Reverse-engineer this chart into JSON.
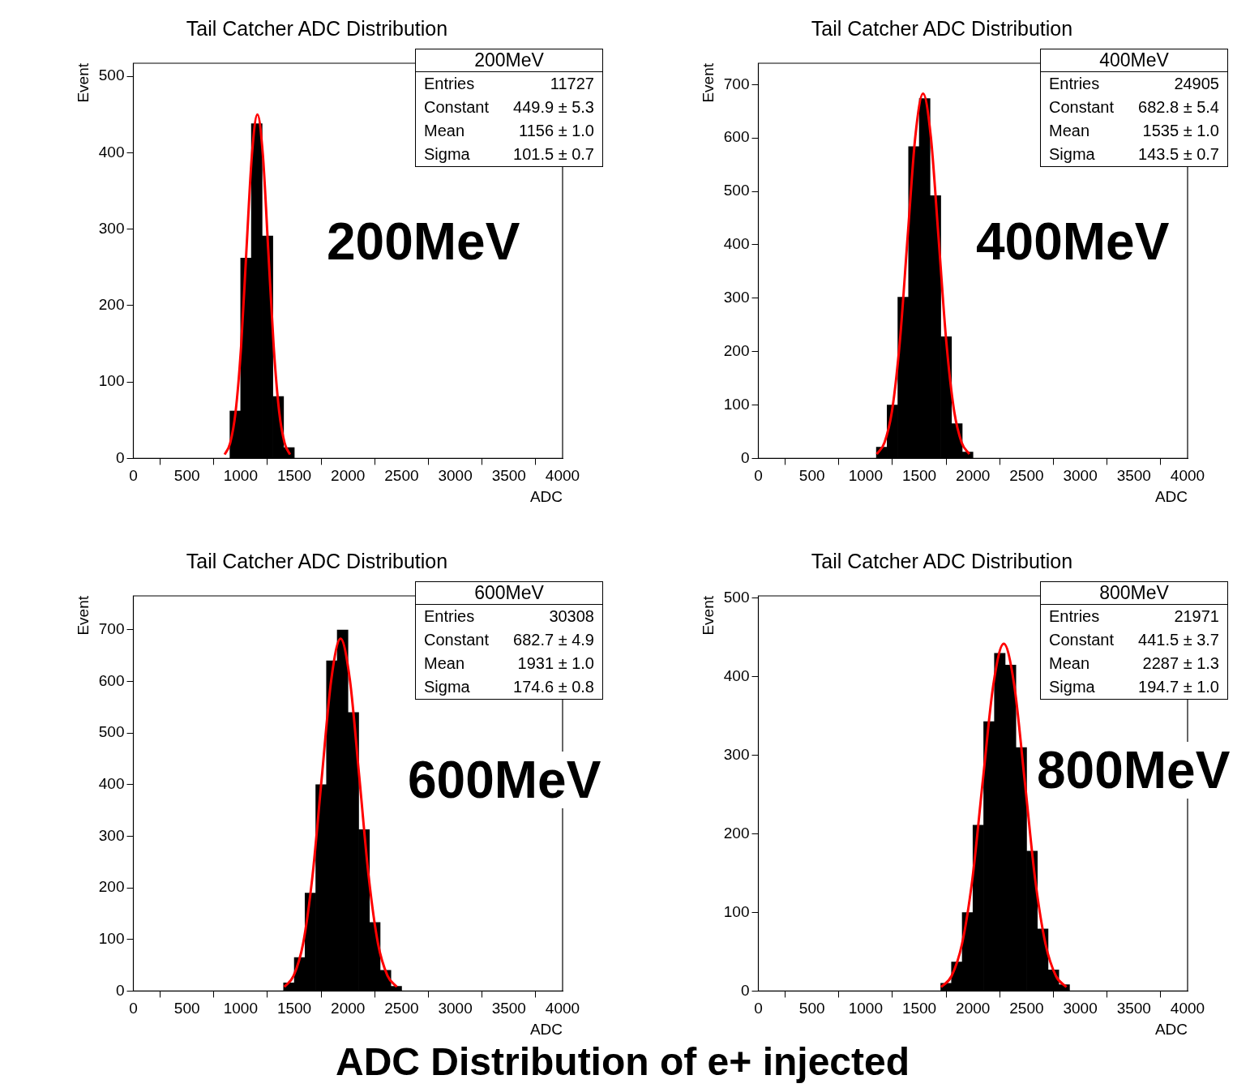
{
  "chart_data": [
    {
      "type": "histogram",
      "title": "Tail Catcher ADC Distribution",
      "xlabel": "ADC",
      "ylabel": "Event",
      "color": "#000000",
      "bins": [
        900,
        1000,
        1100,
        1200,
        1300,
        1400,
        1500
      ],
      "values": [
        62,
        262,
        438,
        291,
        81,
        14
      ],
      "series": [
        {
          "type": "line",
          "color": "#ff0000",
          "x": [
            851,
            902,
            953,
            1004,
            1054,
            1105,
            1156,
            1207,
            1257,
            1308,
            1359,
            1410,
            1460
          ],
          "values": [
            5,
            20,
            61,
            146,
            273,
            397,
            450,
            397,
            273,
            146,
            61,
            20,
            5
          ]
        }
      ],
      "xlim": [
        0,
        4000
      ],
      "xticks": [
        0,
        500,
        1000,
        1500,
        2000,
        2500,
        3000,
        3500,
        4000
      ],
      "ylim": [
        0,
        517
      ],
      "yticks": [
        0,
        100,
        200,
        300,
        400,
        500
      ],
      "annotations": [
        "200MeV",
        "Entries 11727",
        "Constant 449.9 ± 5.3",
        "Mean 1156 ± 1.0",
        "Sigma 101.5 ± 0.7",
        "200MeV"
      ]
    },
    {
      "type": "histogram",
      "title": "Tail Catcher ADC Distribution",
      "xlabel": "ADC",
      "ylabel": "Event",
      "color": "#000000",
      "bins": [
        1100,
        1200,
        1300,
        1400,
        1500,
        1600,
        1700,
        1800,
        1900,
        2000
      ],
      "values": [
        21,
        100,
        302,
        584,
        674,
        492,
        228,
        65,
        12
      ],
      "series": [
        {
          "type": "line",
          "color": "#ff0000",
          "x": [
            1104,
            1176,
            1248,
            1320,
            1391,
            1463,
            1535,
            1607,
            1679,
            1750,
            1822,
            1894,
            1966
          ],
          "values": [
            8,
            30,
            92,
            222,
            414,
            603,
            683,
            603,
            414,
            222,
            92,
            30,
            8
          ]
        }
      ],
      "xlim": [
        0,
        4000
      ],
      "xticks": [
        0,
        500,
        1000,
        1500,
        2000,
        2500,
        3000,
        3500,
        4000
      ],
      "ylim": [
        0,
        740
      ],
      "yticks": [
        0,
        100,
        200,
        300,
        400,
        500,
        600,
        700
      ],
      "annotations": [
        "400MeV",
        "Entries 24905",
        "Constant 682.8 ± 5.4",
        "Mean 1535 ± 1.0",
        "Sigma 143.5 ± 0.7",
        "400MeV"
      ]
    },
    {
      "type": "histogram",
      "title": "Tail Catcher ADC Distribution",
      "xlabel": "ADC",
      "ylabel": "Event",
      "color": "#000000",
      "bins": [
        1400,
        1500,
        1600,
        1700,
        1800,
        1900,
        2000,
        2100,
        2200,
        2300,
        2400,
        2500
      ],
      "values": [
        16,
        65,
        190,
        400,
        640,
        700,
        540,
        313,
        133,
        40,
        9
      ],
      "series": [
        {
          "type": "line",
          "color": "#ff0000",
          "x": [
            1407,
            1494,
            1582,
            1669,
            1756,
            1844,
            1931,
            2018,
            2106,
            2193,
            2280,
            2368,
            2455
          ],
          "values": [
            8,
            30,
            92,
            222,
            414,
            603,
            683,
            603,
            414,
            222,
            92,
            30,
            8
          ]
        }
      ],
      "xlim": [
        0,
        4000
      ],
      "xticks": [
        0,
        500,
        1000,
        1500,
        2000,
        2500,
        3000,
        3500,
        4000
      ],
      "ylim": [
        0,
        766
      ],
      "yticks": [
        0,
        100,
        200,
        300,
        400,
        500,
        600,
        700
      ],
      "annotations": [
        "600MeV",
        "Entries 30308",
        "Constant 682.7 ± 4.9",
        "Mean 1931 ± 1.0",
        "Sigma 174.6 ± 0.8",
        "600MeV"
      ]
    },
    {
      "type": "histogram",
      "title": "Tail Catcher ADC Distribution",
      "xlabel": "ADC",
      "ylabel": "Event",
      "color": "#000000",
      "bins": [
        1700,
        1800,
        1900,
        2000,
        2100,
        2200,
        2300,
        2400,
        2500,
        2600,
        2700,
        2800,
        2900
      ],
      "values": [
        10,
        37,
        100,
        211,
        343,
        430,
        415,
        310,
        178,
        79,
        27,
        8
      ],
      "series": [
        {
          "type": "line",
          "color": "#ff0000",
          "x": [
            1703,
            1800,
            1898,
            1995,
            2092,
            2190,
            2287,
            2384,
            2482,
            2579,
            2676,
            2774,
            2871
          ],
          "values": [
            5,
            19,
            60,
            143,
            268,
            390,
            442,
            390,
            268,
            143,
            60,
            19,
            5
          ]
        }
      ],
      "xlim": [
        0,
        4000
      ],
      "xticks": [
        0,
        500,
        1000,
        1500,
        2000,
        2500,
        3000,
        3500,
        4000
      ],
      "ylim": [
        0,
        503
      ],
      "yticks": [
        0,
        100,
        200,
        300,
        400,
        500
      ],
      "annotations": [
        "800MeV",
        "Entries 21971",
        "Constant 441.5 ± 3.7",
        "Mean 2287 ± 1.3",
        "Sigma 194.7 ± 1.0",
        "800MeV",
        "ADC Distribution of e+ injected"
      ]
    }
  ]
}
